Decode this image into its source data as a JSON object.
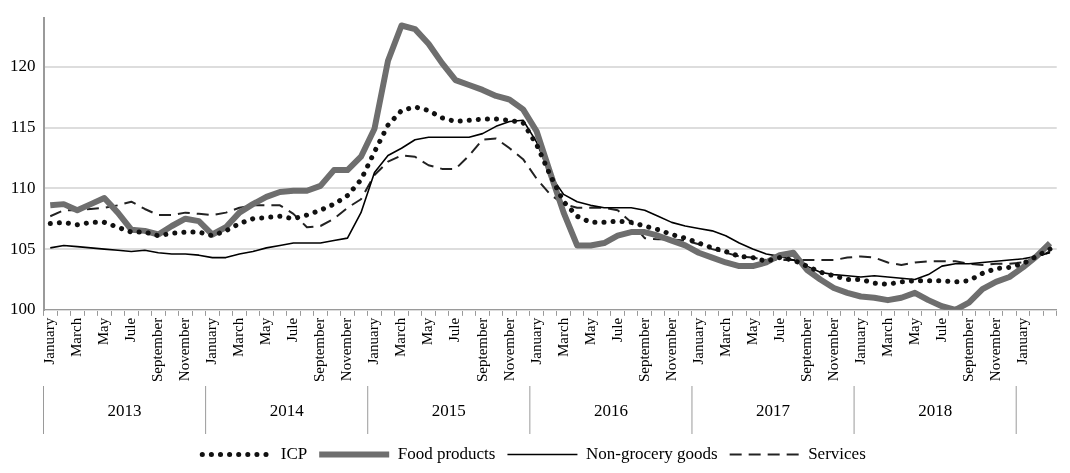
{
  "chart_data": {
    "type": "line",
    "categories": [
      "January",
      null,
      "March",
      null,
      "May",
      null,
      "Jule",
      null,
      "September",
      null,
      "November",
      null,
      "January",
      null,
      "March",
      null,
      "May",
      null,
      "Jule",
      null,
      "September",
      null,
      "November",
      null,
      "January",
      null,
      "March",
      null,
      "May",
      null,
      "Jule",
      null,
      "September",
      null,
      "November",
      null,
      "January",
      null,
      "March",
      null,
      "May",
      null,
      "Jule",
      null,
      "September",
      null,
      "November",
      null,
      "January",
      null,
      "March",
      null,
      "May",
      null,
      "Jule",
      null,
      "September",
      null,
      "November",
      null,
      "January",
      null,
      "March",
      null,
      "May",
      null,
      "Jule",
      null,
      "September",
      null,
      "November",
      null,
      "January",
      null,
      null
    ],
    "series": [
      {
        "name": "ICP",
        "color": "#111111",
        "line_style": "dotted",
        "values": [
          107.1,
          107.2,
          107.0,
          107.2,
          107.2,
          106.8,
          106.4,
          106.4,
          106.1,
          106.3,
          106.4,
          106.4,
          106.1,
          106.5,
          107.1,
          107.5,
          107.6,
          107.7,
          107.5,
          107.8,
          108.2,
          108.7,
          109.4,
          110.7,
          113.0,
          115.2,
          116.4,
          116.7,
          116.4,
          115.8,
          115.5,
          115.6,
          115.7,
          115.7,
          115.6,
          115.4,
          113.6,
          111.1,
          108.9,
          107.7,
          107.2,
          107.2,
          107.3,
          107.2,
          106.9,
          106.6,
          106.2,
          105.9,
          105.5,
          105.1,
          104.8,
          104.4,
          104.3,
          104.0,
          104.3,
          104.1,
          103.6,
          103.1,
          102.8,
          102.5,
          102.5,
          102.2,
          102.1,
          102.3,
          102.4,
          102.4,
          102.4,
          102.3,
          102.4,
          103.0,
          103.4,
          103.5,
          103.8,
          104.4,
          105.0
        ]
      },
      {
        "name": "Food products",
        "color": "#6e6e6e",
        "line_style": "solid",
        "values": [
          108.6,
          108.7,
          108.2,
          108.7,
          109.2,
          108.0,
          106.6,
          106.5,
          106.2,
          106.9,
          107.5,
          107.3,
          106.2,
          106.8,
          108.0,
          108.7,
          109.3,
          109.7,
          109.8,
          109.8,
          110.2,
          111.5,
          111.5,
          112.6,
          114.9,
          120.5,
          123.4,
          123.1,
          121.9,
          120.3,
          118.9,
          118.5,
          118.1,
          117.6,
          117.3,
          116.5,
          114.7,
          111.3,
          108.0,
          105.3,
          105.3,
          105.5,
          106.1,
          106.4,
          106.4,
          106.1,
          105.7,
          105.3,
          104.7,
          104.3,
          103.9,
          103.6,
          103.6,
          103.9,
          104.5,
          104.7,
          103.3,
          102.5,
          101.8,
          101.4,
          101.1,
          101.0,
          100.8,
          101.0,
          101.4,
          100.8,
          100.3,
          100.0,
          100.6,
          101.7,
          102.3,
          102.7,
          103.5,
          104.4,
          105.5
        ]
      },
      {
        "name": "Non-grocery goods",
        "color": "#000000",
        "line_style": "solid",
        "values": [
          105.1,
          105.3,
          105.2,
          105.1,
          105.0,
          104.9,
          104.8,
          104.9,
          104.7,
          104.6,
          104.6,
          104.5,
          104.3,
          104.3,
          104.6,
          104.8,
          105.1,
          105.3,
          105.5,
          105.5,
          105.5,
          105.7,
          105.9,
          108.0,
          111.3,
          112.7,
          113.3,
          114.0,
          114.2,
          114.2,
          114.2,
          114.2,
          114.5,
          115.1,
          115.5,
          115.6,
          113.8,
          111.1,
          109.5,
          108.9,
          108.6,
          108.4,
          108.4,
          108.4,
          108.2,
          107.7,
          107.2,
          106.9,
          106.7,
          106.5,
          106.1,
          105.5,
          105.0,
          104.6,
          104.4,
          104.1,
          103.6,
          103.1,
          102.9,
          102.8,
          102.7,
          102.8,
          102.7,
          102.6,
          102.5,
          102.9,
          103.6,
          103.8,
          103.8,
          103.9,
          104.0,
          104.1,
          104.2,
          104.4,
          104.7
        ]
      },
      {
        "name": "Services",
        "color": "#222222",
        "line_style": "dashed",
        "values": [
          107.7,
          108.2,
          108.2,
          108.3,
          108.4,
          108.6,
          108.9,
          108.3,
          107.8,
          107.8,
          108.0,
          107.9,
          107.8,
          108.0,
          108.4,
          108.6,
          108.6,
          108.6,
          107.9,
          106.8,
          106.9,
          107.5,
          108.4,
          109.1,
          111.1,
          112.2,
          112.7,
          112.6,
          111.9,
          111.6,
          111.6,
          112.7,
          114.0,
          114.1,
          113.3,
          112.4,
          110.8,
          109.5,
          108.7,
          108.4,
          108.4,
          108.4,
          108.2,
          107.2,
          105.9,
          105.8,
          105.8,
          105.7,
          105.4,
          105.0,
          104.7,
          104.4,
          104.3,
          104.1,
          104.1,
          104.1,
          104.1,
          104.1,
          104.1,
          104.3,
          104.4,
          104.3,
          103.9,
          103.7,
          103.9,
          104.0,
          104.0,
          104.0,
          103.8,
          103.7,
          103.8,
          103.8,
          103.9,
          104.3,
          104.8
        ]
      }
    ],
    "ylim": [
      100,
      124
    ],
    "yticks": [
      100,
      105,
      110,
      115,
      120
    ],
    "annotations": [
      "2013",
      "2014",
      "2015",
      "2016",
      "2017",
      "2018"
    ],
    "grid": "y",
    "legend": "bottom",
    "marker": "none"
  }
}
